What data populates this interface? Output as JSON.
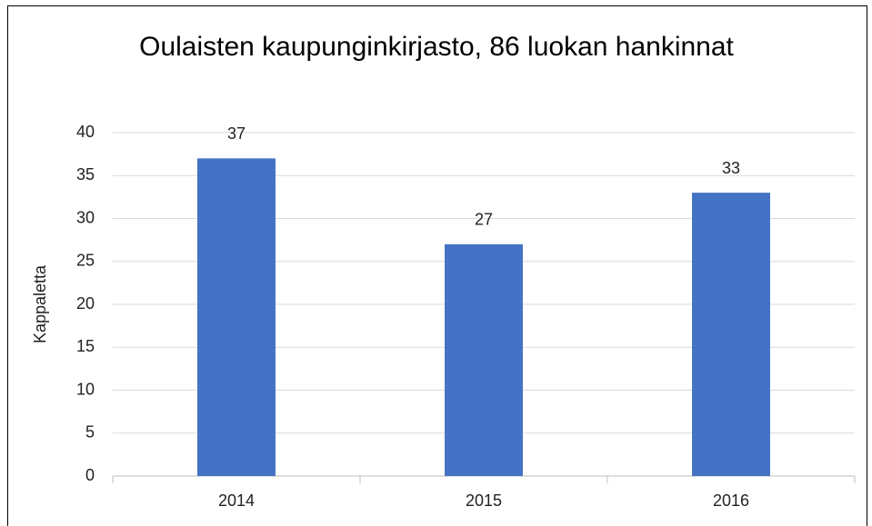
{
  "chart_data": {
    "type": "bar",
    "title": "Oulaisten kaupunginkirjasto, 86 luokan hankinnat",
    "y_label": "Kappaletta",
    "categories": [
      "2014",
      "2015",
      "2016"
    ],
    "values": [
      37,
      27,
      33
    ],
    "color": "#4472c4",
    "ylim": [
      0,
      40
    ],
    "yticks": [
      0,
      5,
      10,
      15,
      20,
      25,
      30,
      35,
      40
    ],
    "grid": true
  }
}
